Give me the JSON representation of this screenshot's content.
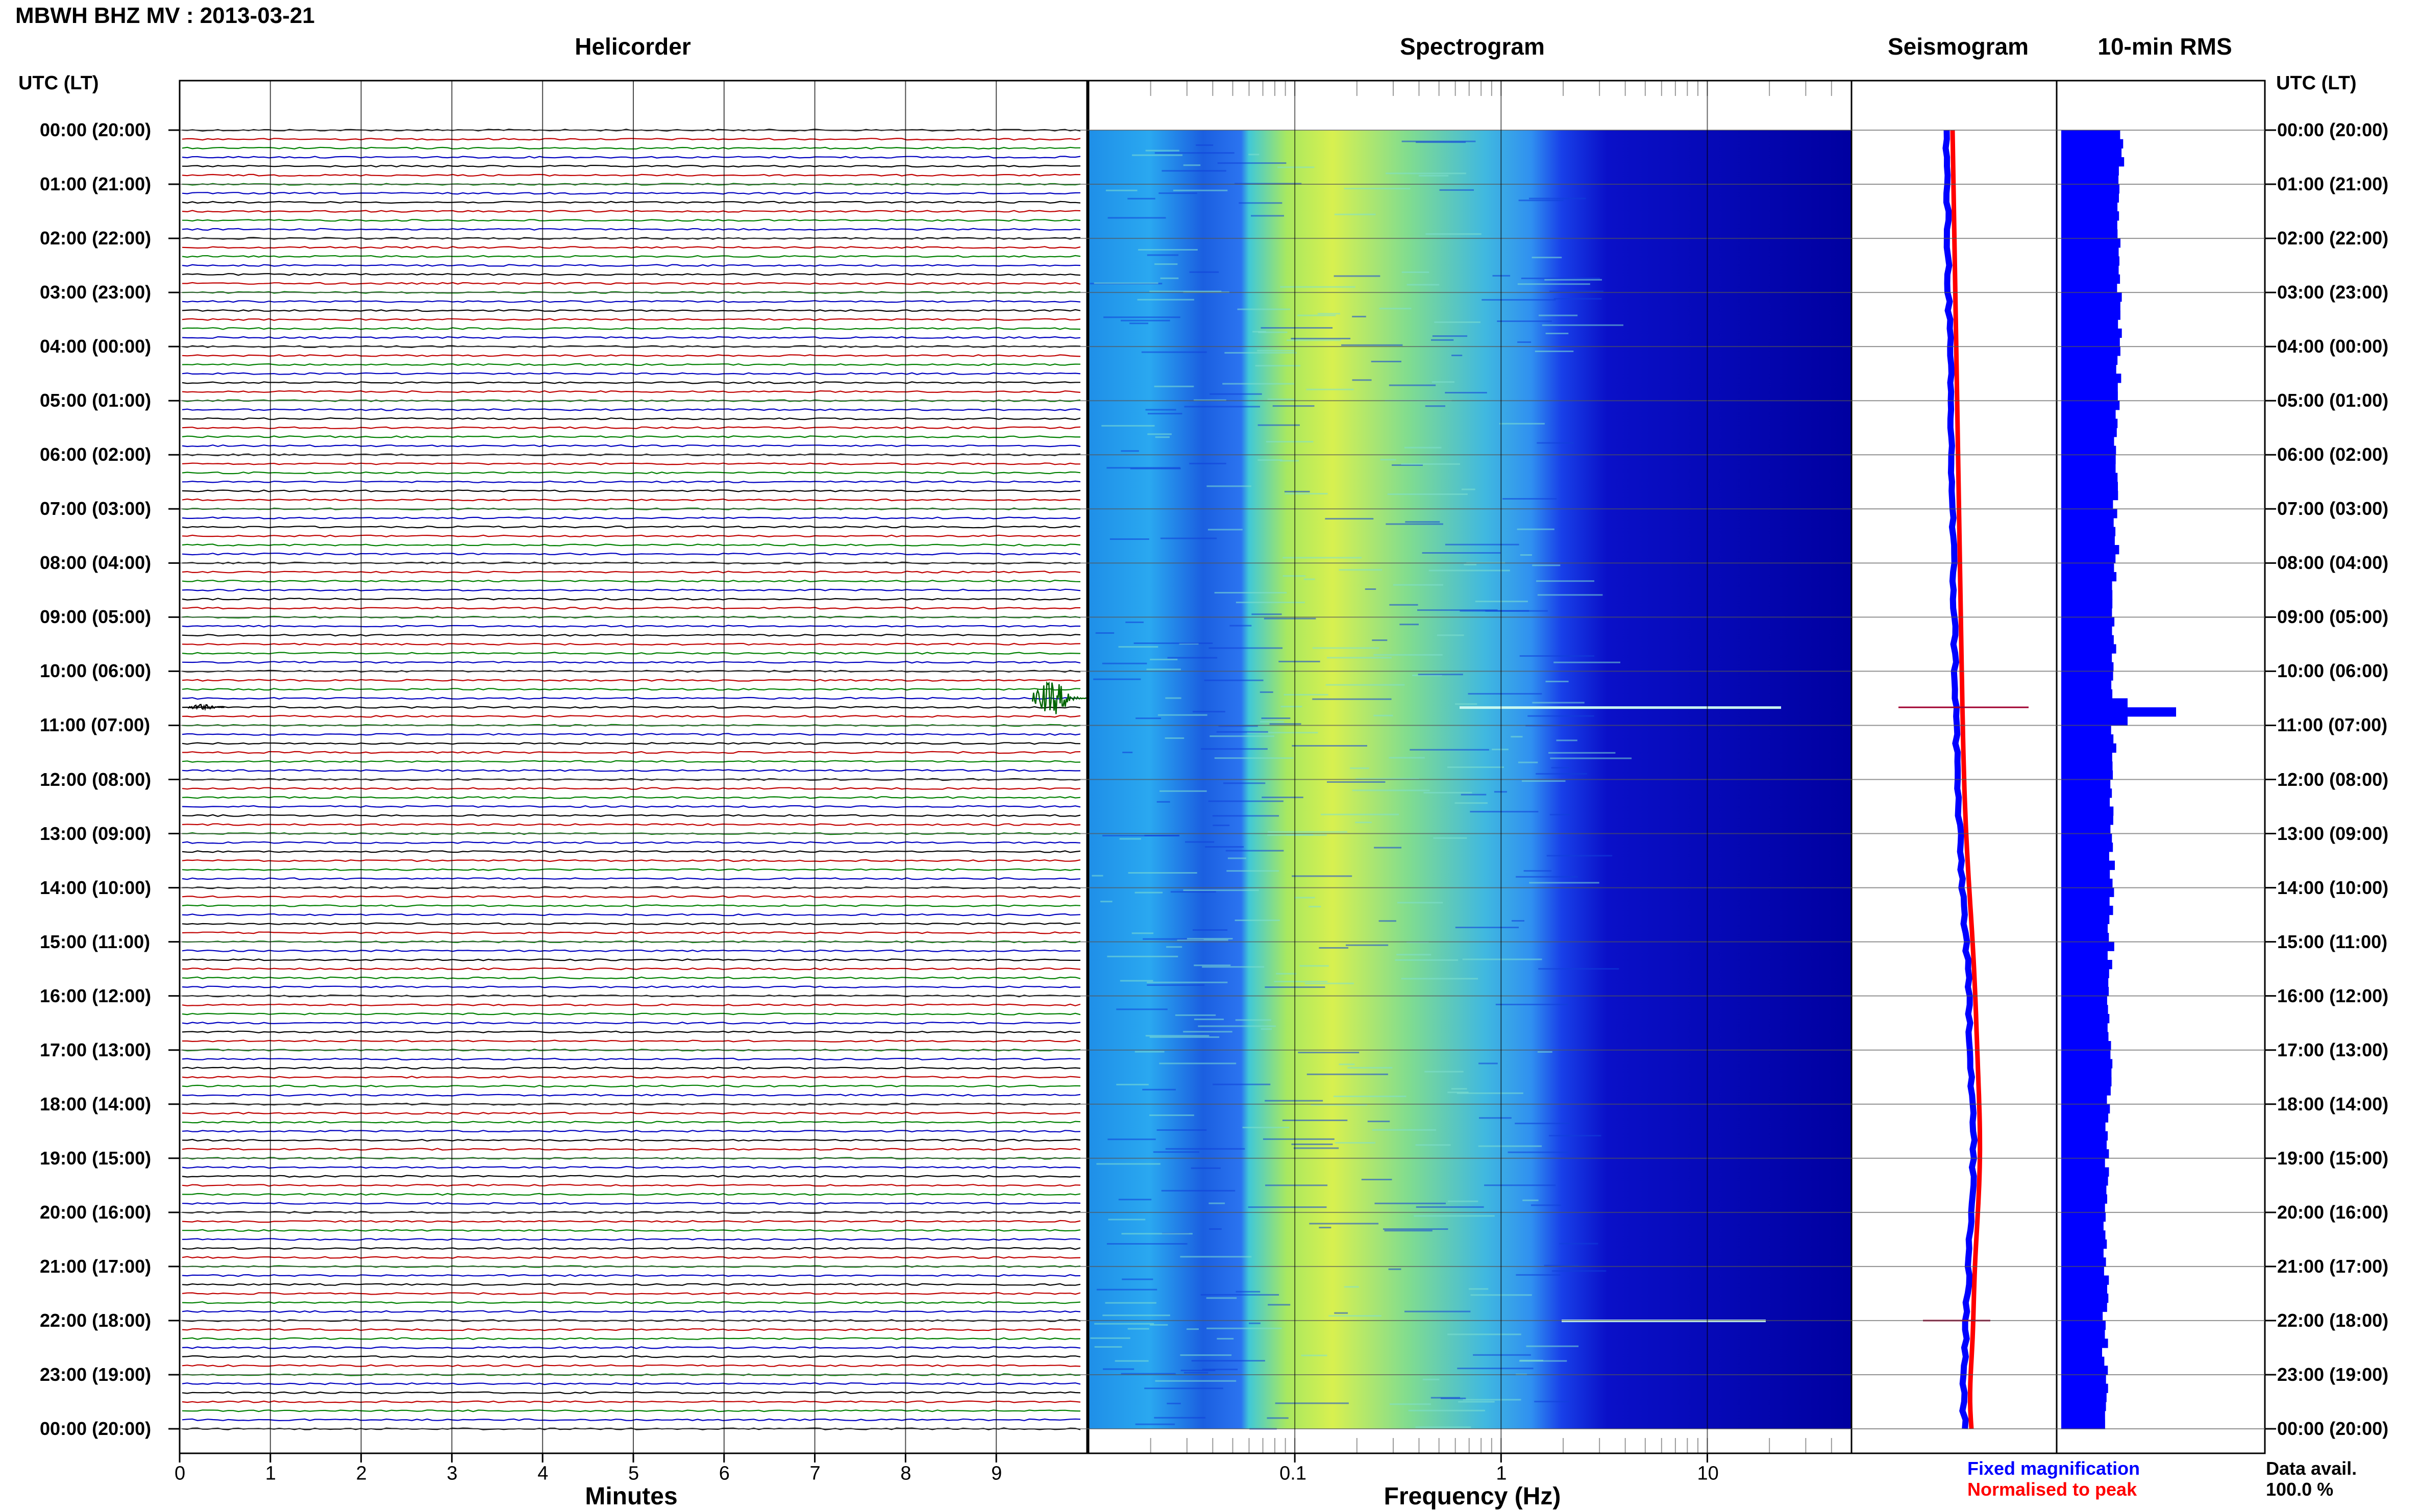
{
  "header": {
    "title": "MBWH BHZ MV : 2013-03-21"
  },
  "panels": {
    "helicorder": "Helicorder",
    "spectrogram": "Spectrogram",
    "seismogram": "Seismogram",
    "rms": "10-min RMS"
  },
  "time_axis": {
    "left_header": "UTC (LT)",
    "right_header": "UTC (LT)",
    "labels": [
      "00:00 (20:00)",
      "01:00 (21:00)",
      "02:00 (22:00)",
      "03:00 (23:00)",
      "04:00 (00:00)",
      "05:00 (01:00)",
      "06:00 (02:00)",
      "07:00 (03:00)",
      "08:00 (04:00)",
      "09:00 (05:00)",
      "10:00 (06:00)",
      "11:00 (07:00)",
      "12:00 (08:00)",
      "13:00 (09:00)",
      "14:00 (10:00)",
      "15:00 (11:00)",
      "16:00 (12:00)",
      "17:00 (13:00)",
      "18:00 (14:00)",
      "19:00 (15:00)",
      "20:00 (16:00)",
      "21:00 (17:00)",
      "22:00 (18:00)",
      "23:00 (19:00)",
      "00:00 (20:00)"
    ]
  },
  "bottom": {
    "minutes_label": "Minutes",
    "frequency_label": "Frequency (Hz)",
    "minute_ticks": [
      "0",
      "1",
      "2",
      "3",
      "4",
      "5",
      "6",
      "7",
      "8",
      "9"
    ],
    "freq_ticks": [
      "0.1",
      "1",
      "10"
    ]
  },
  "legend": {
    "fixed": "Fixed magnification",
    "normalised": "Normalised to peak",
    "fixed_color": "#0000ff",
    "normalised_color": "#ff0000"
  },
  "availability": {
    "label": "Data avail.",
    "value": "100.0 %"
  },
  "colors": {
    "trace_cycle": [
      "#000000",
      "#c00000",
      "#008000",
      "#0000c0"
    ],
    "event_color": "#006400",
    "spectro_dark": "#0000a0",
    "spectro_peak": "#e0f040",
    "rms_bar": "#0000ff"
  },
  "chart_data": [
    {
      "type": "line",
      "title": "Helicorder",
      "xlabel": "Minutes",
      "x_ticks": [
        0,
        1,
        2,
        3,
        4,
        5,
        6,
        7,
        8,
        9
      ],
      "xlim": [
        0,
        10
      ],
      "rows": 144,
      "row_minutes": 10,
      "events": [
        {
          "time_utc": "10:30",
          "minute": 9.4,
          "amplitude": "large",
          "duration_min": 1.0
        },
        {
          "time_utc": "10:40",
          "minute": 0.1,
          "amplitude": "small",
          "duration_min": 0.4
        }
      ]
    },
    {
      "type": "heatmap",
      "title": "Spectrogram",
      "xlabel": "Frequency (Hz)",
      "x_scale": "log",
      "x_ticks": [
        0.1,
        1,
        10
      ],
      "xlim": [
        0.01,
        50
      ],
      "peak_band_hz": [
        0.15,
        1.0
      ],
      "lines_utc": [
        "10:40",
        "22:00"
      ]
    },
    {
      "type": "line",
      "title": "Seismogram",
      "series": [
        {
          "name": "Fixed magnification",
          "color": "#0000ff"
        },
        {
          "name": "Normalised to peak",
          "color": "#ff0000"
        }
      ],
      "spikes_utc": [
        "10:40",
        "22:00"
      ]
    },
    {
      "type": "bar",
      "title": "10-min RMS",
      "orientation": "horizontal",
      "peak_utc": "10:40"
    }
  ]
}
